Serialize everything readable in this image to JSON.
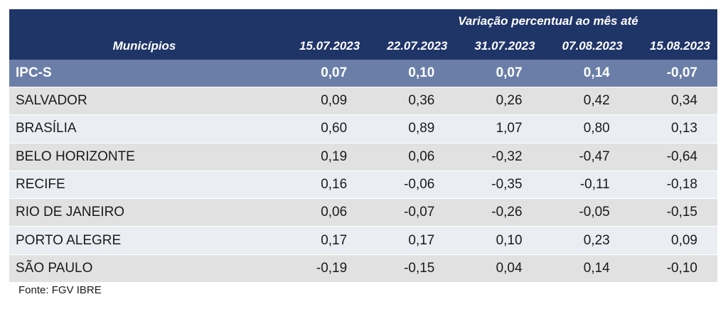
{
  "chart_data": {
    "type": "table",
    "header": {
      "group_label": "Variação percentual ao mês até",
      "row_label": "Municípios",
      "columns": [
        "15.07.2023",
        "22.07.2023",
        "31.07.2023",
        "07.08.2023",
        "15.08.2023"
      ]
    },
    "rows": [
      {
        "name": "IPC-S",
        "values": [
          "0,07",
          "0,10",
          "0,07",
          "0,14",
          "-0,07"
        ]
      },
      {
        "name": "SALVADOR",
        "values": [
          "0,09",
          "0,36",
          "0,26",
          "0,42",
          "0,34"
        ]
      },
      {
        "name": "BRASÍLIA",
        "values": [
          "0,60",
          "0,89",
          "1,07",
          "0,80",
          "0,13"
        ]
      },
      {
        "name": "BELO HORIZONTE",
        "values": [
          "0,19",
          "0,06",
          "-0,32",
          "-0,47",
          "-0,64"
        ]
      },
      {
        "name": "RECIFE",
        "values": [
          "0,16",
          "-0,06",
          "-0,35",
          "-0,11",
          "-0,18"
        ]
      },
      {
        "name": "RIO DE JANEIRO",
        "values": [
          "0,06",
          "-0,07",
          "-0,26",
          "-0,05",
          "-0,15"
        ]
      },
      {
        "name": "PORTO ALEGRE",
        "values": [
          "0,17",
          "0,17",
          "0,10",
          "0,23",
          "0,09"
        ]
      },
      {
        "name": "SÃO PAULO",
        "values": [
          "-0,19",
          "-0,15",
          "0,04",
          "0,14",
          "-0,10"
        ]
      }
    ],
    "source": "Fonte: FGV IBRE"
  },
  "colors": {
    "header_bg": "#1f3467",
    "highlight_row_bg": "#6b7ea8",
    "row_bg_a": "#e1e1e1",
    "row_bg_b": "#eaeef3"
  }
}
